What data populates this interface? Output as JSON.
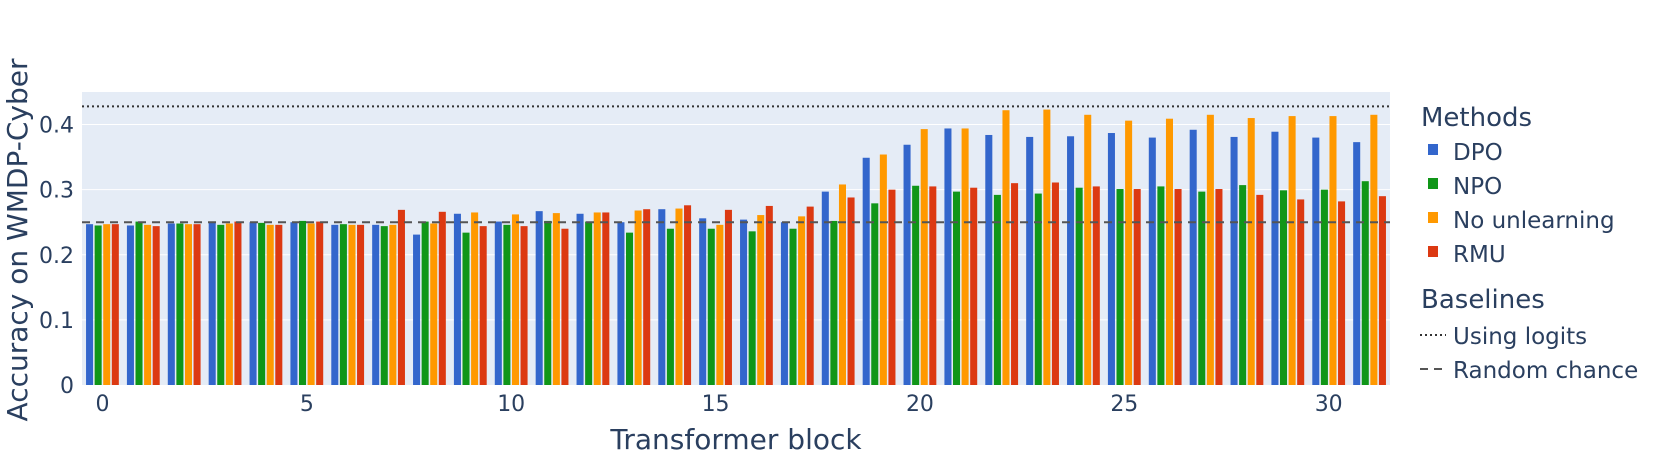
{
  "chart_data": {
    "type": "bar",
    "xlabel": "Transformer block",
    "ylabel": "Accuracy on WMDP-Cyber",
    "x": [
      0,
      1,
      2,
      3,
      4,
      5,
      6,
      7,
      8,
      9,
      10,
      11,
      12,
      13,
      14,
      15,
      16,
      17,
      18,
      19,
      20,
      21,
      22,
      23,
      24,
      25,
      26,
      27,
      28,
      29,
      30,
      31
    ],
    "xticks": [
      0,
      5,
      10,
      15,
      20,
      25,
      30
    ],
    "xlim": [
      -0.5,
      31.5
    ],
    "yticks": [
      0,
      0.1,
      0.2,
      0.3,
      0.4
    ],
    "ytick_labels": [
      "0",
      "0.1",
      "0.2",
      "0.3",
      "0.4"
    ],
    "ylim": [
      0,
      0.45
    ],
    "grid": true,
    "legend_position": "right",
    "legend_groups": [
      {
        "title": "Methods",
        "kind": "bars"
      },
      {
        "title": "Baselines",
        "kind": "lines"
      }
    ],
    "series": [
      {
        "name": "DPO",
        "color": "#3366cc",
        "values": [
          0.247,
          0.245,
          0.248,
          0.25,
          0.25,
          0.25,
          0.246,
          0.246,
          0.231,
          0.263,
          0.251,
          0.267,
          0.263,
          0.25,
          0.27,
          0.256,
          0.254,
          0.25,
          0.297,
          0.349,
          0.369,
          0.394,
          0.384,
          0.381,
          0.382,
          0.387,
          0.38,
          0.392,
          0.381,
          0.389,
          0.38,
          0.373
        ]
      },
      {
        "name": "NPO",
        "color": "#109618",
        "values": [
          0.245,
          0.251,
          0.248,
          0.246,
          0.249,
          0.252,
          0.247,
          0.244,
          0.251,
          0.234,
          0.246,
          0.252,
          0.251,
          0.234,
          0.24,
          0.24,
          0.236,
          0.24,
          0.252,
          0.279,
          0.306,
          0.297,
          0.292,
          0.294,
          0.303,
          0.301,
          0.305,
          0.297,
          0.307,
          0.299,
          0.3,
          0.313
        ]
      },
      {
        "name": "No unlearning",
        "color": "#ff9900",
        "values": [
          0.247,
          0.246,
          0.247,
          0.248,
          0.246,
          0.248,
          0.246,
          0.246,
          0.248,
          0.265,
          0.262,
          0.264,
          0.265,
          0.268,
          0.271,
          0.246,
          0.261,
          0.259,
          0.308,
          0.354,
          0.393,
          0.394,
          0.422,
          0.423,
          0.415,
          0.406,
          0.409,
          0.415,
          0.41,
          0.413,
          0.413,
          0.415
        ]
      },
      {
        "name": "RMU",
        "color": "#dc3912",
        "values": [
          0.247,
          0.244,
          0.247,
          0.251,
          0.246,
          0.251,
          0.246,
          0.269,
          0.266,
          0.244,
          0.244,
          0.24,
          0.265,
          0.27,
          0.276,
          0.269,
          0.275,
          0.274,
          0.288,
          0.3,
          0.305,
          0.303,
          0.31,
          0.311,
          0.305,
          0.301,
          0.301,
          0.301,
          0.292,
          0.285,
          0.282,
          0.29
        ]
      }
    ],
    "baselines": [
      {
        "name": "Using logits",
        "value": 0.428,
        "style": "dotted",
        "color": "#333333"
      },
      {
        "name": "Random chance",
        "value": 0.25,
        "style": "dashed",
        "color": "#555555"
      }
    ]
  }
}
